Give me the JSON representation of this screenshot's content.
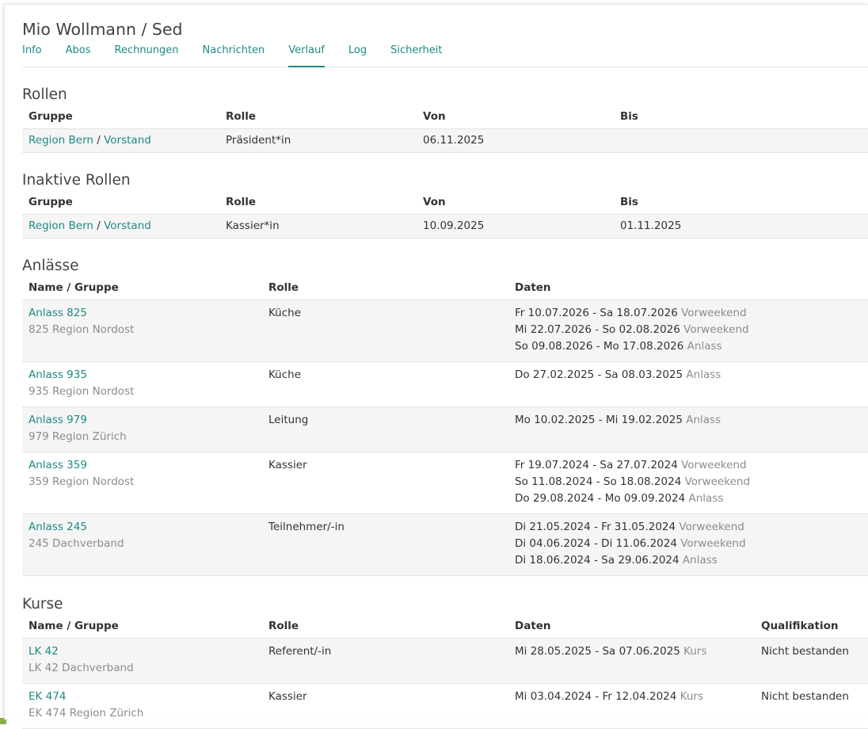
{
  "page": {
    "title": "Mio Wollmann / Sed"
  },
  "tabs": [
    "Info",
    "Abos",
    "Rechnungen",
    "Nachrichten",
    "Verlauf",
    "Log",
    "Sicherheit"
  ],
  "active_tab": "Verlauf",
  "rollen": {
    "title": "Rollen",
    "headers": [
      "Gruppe",
      "Rolle",
      "Von",
      "Bis"
    ],
    "rows": [
      {
        "group1": "Region Bern",
        "sep": "/",
        "group2": "Vorstand",
        "rolle": "Präsident*in",
        "von": "06.11.2025",
        "bis": ""
      }
    ]
  },
  "inaktive": {
    "title": "Inaktive Rollen",
    "headers": [
      "Gruppe",
      "Rolle",
      "Von",
      "Bis"
    ],
    "rows": [
      {
        "group1": "Region Bern",
        "sep": "/",
        "group2": "Vorstand",
        "rolle": "Kassier*in",
        "von": "10.09.2025",
        "bis": "01.11.2025"
      }
    ]
  },
  "anlaesse": {
    "title": "Anlässe",
    "headers": [
      "Name / Gruppe",
      "Rolle",
      "Daten"
    ],
    "rows": [
      {
        "name": "Anlass 825",
        "gruppe": "825 Region Nordost",
        "rolle": "Küche",
        "daten": [
          {
            "range": "Fr 10.07.2026 - Sa 18.07.2026",
            "type": "Vorweekend"
          },
          {
            "range": "Mi 22.07.2026 - So 02.08.2026",
            "type": "Vorweekend"
          },
          {
            "range": "So 09.08.2026 - Mo 17.08.2026",
            "type": "Anlass"
          }
        ]
      },
      {
        "name": "Anlass 935",
        "gruppe": "935 Region Nordost",
        "rolle": "Küche",
        "daten": [
          {
            "range": "Do 27.02.2025 - Sa 08.03.2025",
            "type": "Anlass"
          }
        ]
      },
      {
        "name": "Anlass 979",
        "gruppe": "979 Region Zürich",
        "rolle": "Leitung",
        "daten": [
          {
            "range": "Mo 10.02.2025 - Mi 19.02.2025",
            "type": "Anlass"
          }
        ]
      },
      {
        "name": "Anlass 359",
        "gruppe": "359 Region Nordost",
        "rolle": "Kassier",
        "daten": [
          {
            "range": "Fr 19.07.2024 - Sa 27.07.2024",
            "type": "Vorweekend"
          },
          {
            "range": "So 11.08.2024 - So 18.08.2024",
            "type": "Vorweekend"
          },
          {
            "range": "Do 29.08.2024 - Mo 09.09.2024",
            "type": "Anlass"
          }
        ]
      },
      {
        "name": "Anlass 245",
        "gruppe": "245 Dachverband",
        "rolle": "Teilnehmer/-in",
        "daten": [
          {
            "range": "Di 21.05.2024 - Fr 31.05.2024",
            "type": "Vorweekend"
          },
          {
            "range": "Di 04.06.2024 - Di 11.06.2024",
            "type": "Vorweekend"
          },
          {
            "range": "Di 18.06.2024 - Sa 29.06.2024",
            "type": "Anlass"
          }
        ]
      }
    ]
  },
  "kurse": {
    "title": "Kurse",
    "headers": [
      "Name / Gruppe",
      "Rolle",
      "Daten",
      "Qualifikation"
    ],
    "rows": [
      {
        "name": "LK 42",
        "gruppe": "LK 42 Dachverband",
        "rolle": "Referent/-in",
        "daten": [
          {
            "range": "Mi 28.05.2025 - Sa 07.06.2025",
            "type": "Kurs"
          }
        ],
        "qualifikation": "Nicht bestanden"
      },
      {
        "name": "EK 474",
        "gruppe": "EK 474 Region Zürich",
        "rolle": "Kassier",
        "daten": [
          {
            "range": "Mi 03.04.2024 - Fr 12.04.2024",
            "type": "Kurs"
          }
        ],
        "qualifikation": "Nicht bestanden"
      }
    ]
  },
  "colors": {
    "link": "#1d8a84",
    "muted": "#8c8c8c",
    "stripe": "#f5f5f5",
    "accent": "#8aae4b"
  }
}
